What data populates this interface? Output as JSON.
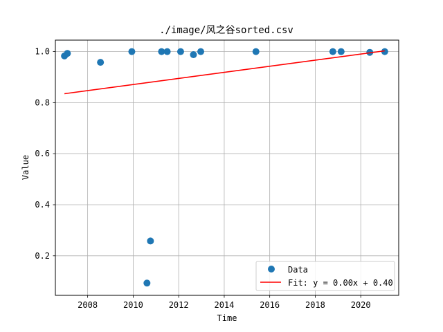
{
  "chart_data": {
    "type": "scatter",
    "title": "./image/风之谷sorted.csv",
    "xlabel": "Time",
    "ylabel": "Value",
    "xlim": [
      "2006-08-01",
      "2021-09-01"
    ],
    "ylim": [
      0.045,
      1.045
    ],
    "xticks": [
      2008,
      2010,
      2012,
      2014,
      2016,
      2018,
      2020
    ],
    "yticks": [
      0.2,
      0.4,
      0.6,
      0.8,
      1.0
    ],
    "ytick_labels": [
      "0.2",
      "0.4",
      "0.6",
      "0.8",
      "1.0"
    ],
    "grid": true,
    "legend_position": "lower-right",
    "series": [
      {
        "name": "Data",
        "kind": "scatter",
        "color": "#1f77b4",
        "points": [
          {
            "x": "2006-12-25",
            "y": 0.983
          },
          {
            "x": "2007-02-10",
            "y": 0.993
          },
          {
            "x": "2008-07-25",
            "y": 0.958
          },
          {
            "x": "2009-12-10",
            "y": 1.0
          },
          {
            "x": "2010-08-10",
            "y": 0.093
          },
          {
            "x": "2010-10-05",
            "y": 0.258
          },
          {
            "x": "2011-04-01",
            "y": 1.0
          },
          {
            "x": "2011-07-01",
            "y": 1.0
          },
          {
            "x": "2012-02-01",
            "y": 1.0
          },
          {
            "x": "2012-08-25",
            "y": 0.988
          },
          {
            "x": "2012-12-20",
            "y": 1.0
          },
          {
            "x": "2015-05-25",
            "y": 1.0
          },
          {
            "x": "2018-10-10",
            "y": 1.0
          },
          {
            "x": "2019-02-20",
            "y": 1.0
          },
          {
            "x": "2020-05-25",
            "y": 0.997
          },
          {
            "x": "2021-01-20",
            "y": 1.0
          }
        ]
      },
      {
        "name": "Fit: y = 0.00x + 0.40",
        "kind": "line",
        "color": "#ff0000",
        "points": [
          {
            "x": "2006-12-25",
            "y": 0.835
          },
          {
            "x": "2021-01-20",
            "y": 1.003
          }
        ]
      }
    ]
  }
}
